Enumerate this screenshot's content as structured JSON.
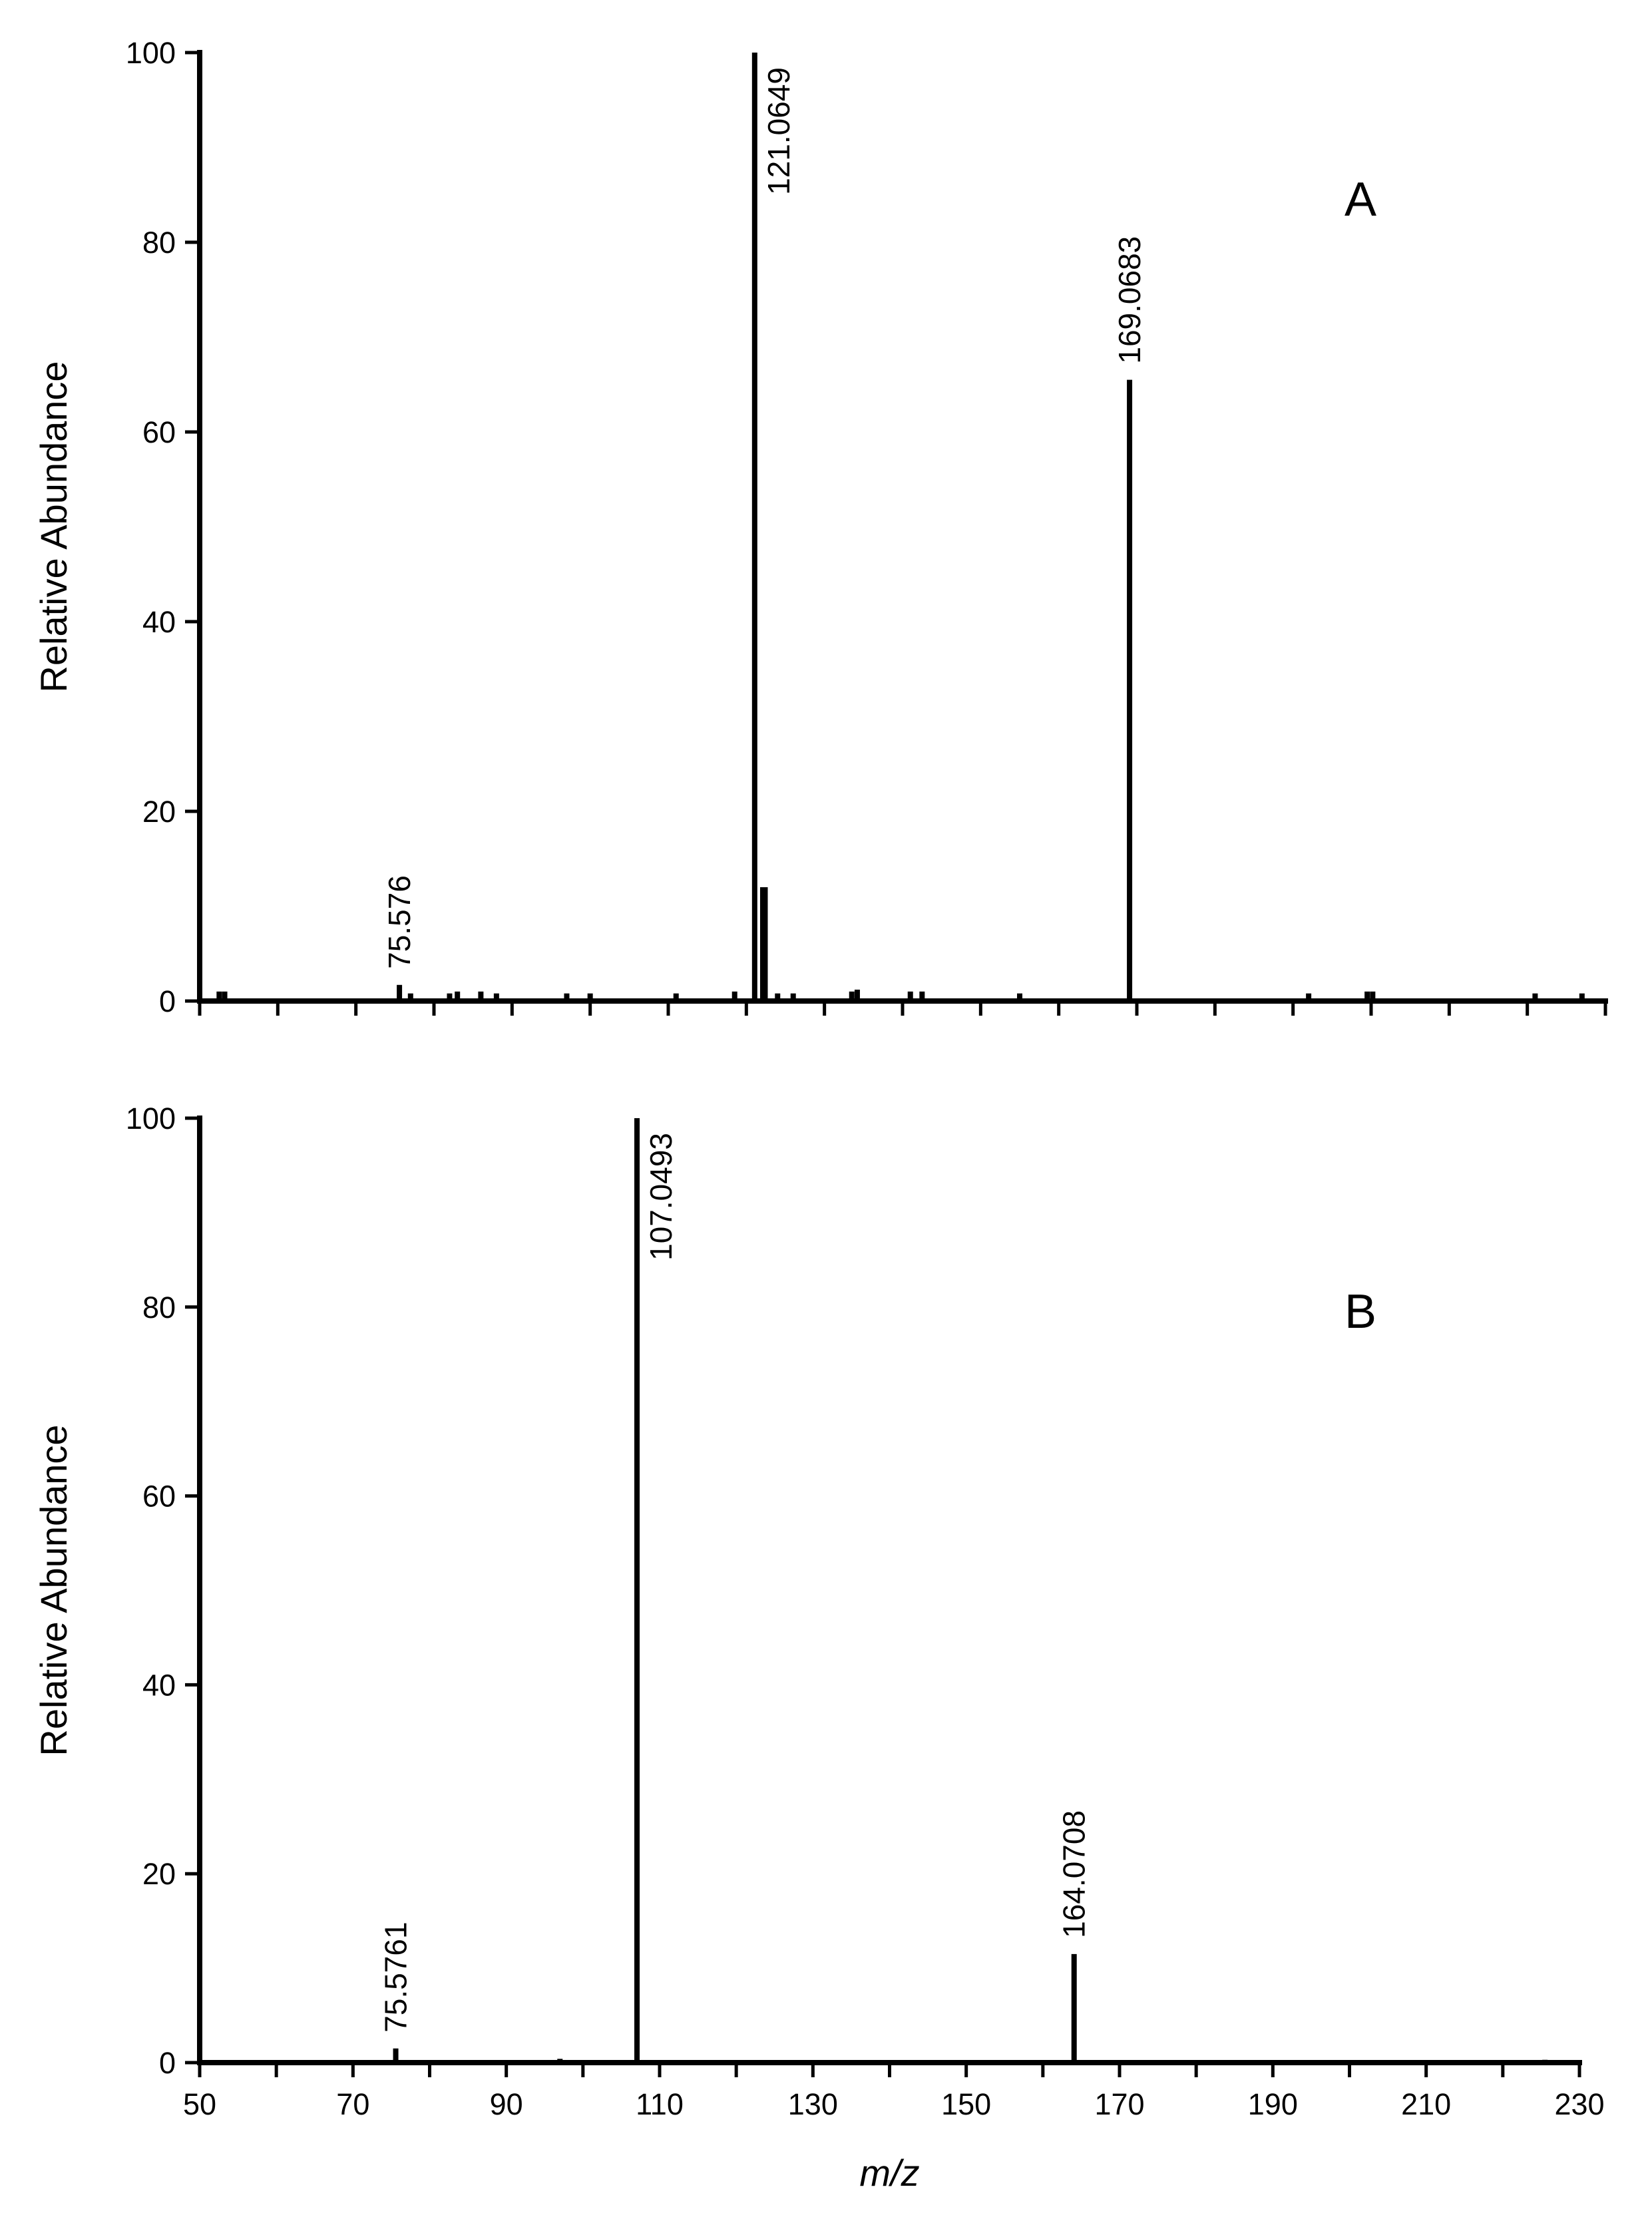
{
  "chart_data": [
    {
      "type": "stem",
      "label": "A",
      "y_label": "Relative Abundance",
      "color": "#000000",
      "x": [
        75.576,
        121.0649,
        169.0683
      ],
      "values": [
        1.7,
        100,
        65.5
      ],
      "minor_x": [
        52.5,
        53.2,
        77,
        82,
        83,
        86,
        88,
        97,
        100,
        111,
        118.5,
        122.1,
        122.4,
        124,
        126,
        133.5,
        134.2,
        141,
        142.5,
        155,
        192,
        199.5,
        200.2,
        221,
        227
      ],
      "minor_values": [
        1,
        1,
        0.8,
        0.8,
        1,
        1,
        0.8,
        0.8,
        0.8,
        0.8,
        1,
        12,
        12,
        0.8,
        0.8,
        1,
        1.2,
        1,
        1,
        0.8,
        0.8,
        1,
        1,
        0.8,
        0.8
      ],
      "xlim": [
        50,
        230
      ],
      "xminorticks": [
        50,
        60,
        70,
        80,
        90,
        100,
        110,
        120,
        130,
        140,
        150,
        160,
        170,
        180,
        190,
        200,
        210,
        220,
        230
      ],
      "ylim": [
        0,
        100
      ],
      "yticks": [
        0,
        20,
        40,
        60,
        80,
        100
      ]
    },
    {
      "type": "stem",
      "label": "B",
      "x_label": "m/z",
      "y_label": "Relative Abundance",
      "color": "#000000",
      "x": [
        75.5761,
        107.0493,
        164.0708
      ],
      "values": [
        1.5,
        100,
        11.5
      ],
      "minor_x": [
        97,
        225.5
      ],
      "minor_values": [
        0.4,
        0.3
      ],
      "xlim": [
        50,
        230
      ],
      "xticks": [
        50,
        70,
        90,
        110,
        130,
        150,
        170,
        190,
        210,
        230
      ],
      "xminorticks": [
        60,
        80,
        100,
        120,
        140,
        160,
        180,
        200,
        220
      ],
      "ylim": [
        0,
        100
      ],
      "yticks": [
        0,
        20,
        40,
        60,
        80,
        100
      ]
    }
  ]
}
